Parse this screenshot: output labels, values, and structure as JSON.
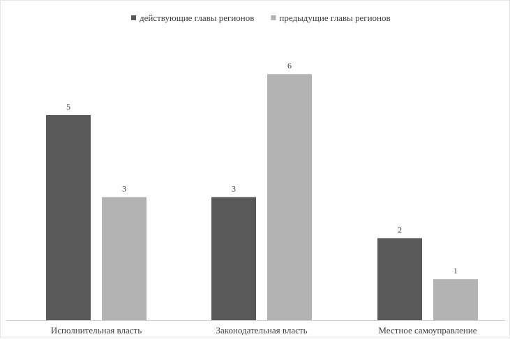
{
  "chart_data": {
    "type": "bar",
    "categories": [
      "Исполнительная власть",
      "Законодательная власть",
      "Местное самоуправление"
    ],
    "series": [
      {
        "name": "действующие главы регионов",
        "values": [
          5,
          3,
          2
        ],
        "color": "#595959"
      },
      {
        "name": "предыдущие главы регионов",
        "values": [
          3,
          6,
          1
        ],
        "color": "#b3b3b3"
      }
    ],
    "ylim": [
      0,
      6.7
    ],
    "grid": false,
    "legend_position": "top",
    "data_labels": true
  }
}
